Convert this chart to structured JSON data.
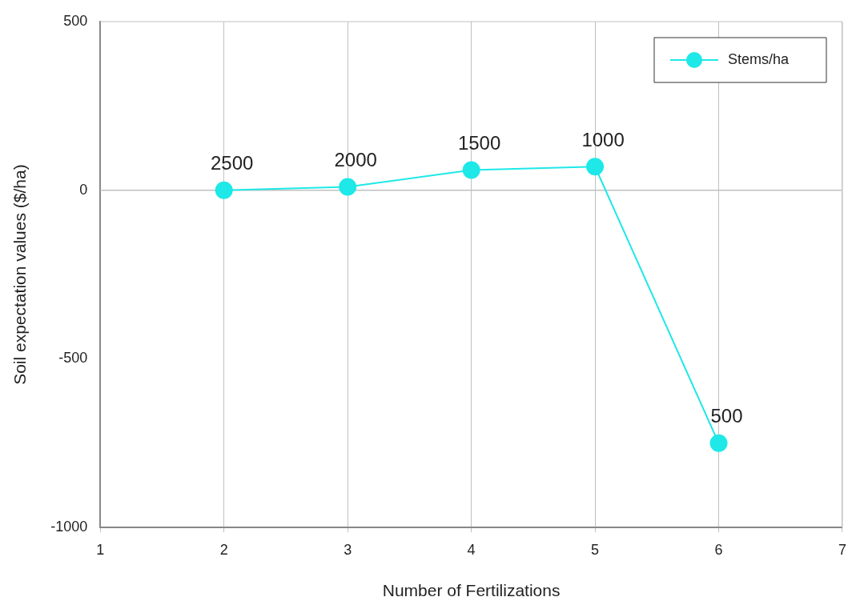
{
  "chart_data": {
    "type": "line",
    "xlabel": "Number of Fertilizations",
    "ylabel": "Soil expectation values ($/ha)",
    "x": [
      2,
      3,
      4,
      5,
      6
    ],
    "series": [
      {
        "name": "Stems/ha",
        "color": "#1ee8e8",
        "values": [
          0,
          10,
          60,
          70,
          -750
        ]
      }
    ],
    "xlim": [
      1,
      7
    ],
    "xticks": [
      1,
      2,
      3,
      4,
      5,
      6,
      7
    ],
    "ylim": [
      -1000,
      500
    ],
    "yticks": [
      -1000,
      -500,
      0,
      500
    ],
    "grid": "x",
    "legend": "top right",
    "marker": "circle",
    "line_style": "solid",
    "ref_lines": [
      {
        "axis": "y",
        "value": 0,
        "color": "#c0c0c0"
      }
    ],
    "annotations": [
      {
        "text": "2500",
        "x": 2,
        "y": 0
      },
      {
        "text": "2000",
        "x": 3,
        "y": 10
      },
      {
        "text": "1500",
        "x": 4,
        "y": 60
      },
      {
        "text": "1000",
        "x": 5,
        "y": 70
      },
      {
        "text": "500",
        "x": 6,
        "y": -750
      }
    ]
  }
}
